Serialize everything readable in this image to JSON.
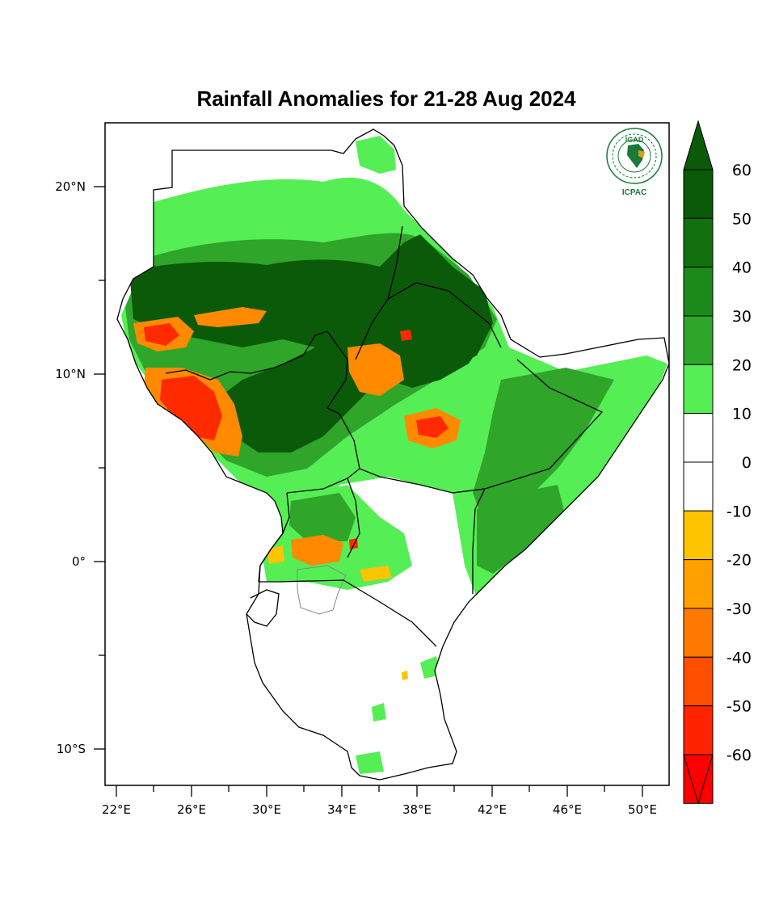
{
  "title": "Rainfall Anomalies for 21-28 Aug 2024",
  "logo": {
    "top_text": "IGAD",
    "bottom_text": "ICPAC",
    "color": "#1a7a3a"
  },
  "axes": {
    "lon_ticks": [
      "22°E",
      "26°E",
      "30°E",
      "34°E",
      "38°E",
      "42°E",
      "46°E",
      "50°E"
    ],
    "lat_ticks": [
      "20°N",
      "10°N",
      "0°",
      "10°S"
    ]
  },
  "colorbar": {
    "levels": [
      "60",
      "50",
      "40",
      "30",
      "20",
      "10",
      "0",
      "-10",
      "-20",
      "-30",
      "-40",
      "-50",
      "-60"
    ],
    "colors_top_to_bottom": [
      "#0a5a0a",
      "#12700f",
      "#1b8a1b",
      "#2fa52a",
      "#55ee55",
      "#ffffff",
      "#ffffff",
      "#ffc400",
      "#ffa000",
      "#ff7800",
      "#ff4e00",
      "#ff2400",
      "#ff0000"
    ],
    "max_arrow_color": "#0a5a0a",
    "min_arrow_color": "#ff0000"
  },
  "colors": {
    "dry_strong": "#ff2a00",
    "dry_moderate": "#ff8a00",
    "dry_light": "#ffc400",
    "wet_light": "#55ee55",
    "wet_moderate": "#2fa52a",
    "wet_strong": "#0a5a0a"
  }
}
